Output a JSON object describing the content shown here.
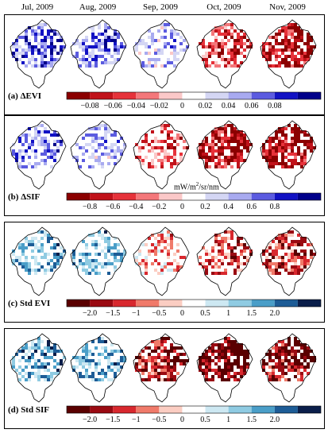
{
  "months": [
    "Jul, 2009",
    "Aug, 2009",
    "Sep, 2009",
    "Oct, 2009",
    "Nov, 2009"
  ],
  "colors": {
    "diverging_red_blue": [
      "#8b0000",
      "#c1121a",
      "#e6323a",
      "#f4777a",
      "#fbc8c8",
      "#ffffff",
      "#d4d6f4",
      "#a8aaf0",
      "#5b5be0",
      "#1212c4",
      "#00008a"
    ],
    "diverging_red_teal": [
      "#5a0000",
      "#9a0a12",
      "#d8282e",
      "#f07a6a",
      "#fbcdc2",
      "#ffffff",
      "#cde8f2",
      "#8fcbe2",
      "#4a9ec8",
      "#1d5c96",
      "#0a1e4a"
    ],
    "outline": "#000000"
  },
  "panels": [
    {
      "label": "(a) ΔEVI",
      "unit": "",
      "ticks": [
        "−0.08",
        "−0.06",
        "−0.04",
        "−0.02",
        "0",
        "0.02",
        "0.04",
        "0.06",
        "0.08"
      ],
      "palette": "diverging_red_blue",
      "intensity": [
        -0.55,
        -0.45,
        -0.25,
        0.6,
        0.85
      ]
    },
    {
      "label": "(b) ΔSIF",
      "unit": "mW/m2/sr/nm",
      "ticks": [
        "−0.8",
        "−0.6",
        "−0.4",
        "−0.2",
        "0",
        "0.2",
        "0.4",
        "0.6",
        "0.8"
      ],
      "palette": "diverging_red_blue",
      "intensity": [
        -0.45,
        -0.3,
        0.45,
        0.8,
        0.85
      ]
    },
    {
      "label": "(c) Std EVI",
      "unit": "",
      "ticks": [
        "−2.0",
        "−1.5",
        "−1",
        "−0.5",
        "0",
        "0.5",
        "1",
        "1.5",
        "2.0"
      ],
      "palette": "diverging_red_teal",
      "intensity": [
        -0.4,
        -0.35,
        0.2,
        0.45,
        0.55
      ]
    },
    {
      "label": "(d) Std SIF",
      "unit": "",
      "ticks": [
        "−2.0",
        "−1.5",
        "−1",
        "−0.5",
        "0",
        "0.5",
        "1",
        "1.5",
        "2.0"
      ],
      "palette": "diverging_red_teal",
      "intensity": [
        -0.5,
        -0.45,
        0.7,
        0.95,
        0.85
      ]
    }
  ]
}
